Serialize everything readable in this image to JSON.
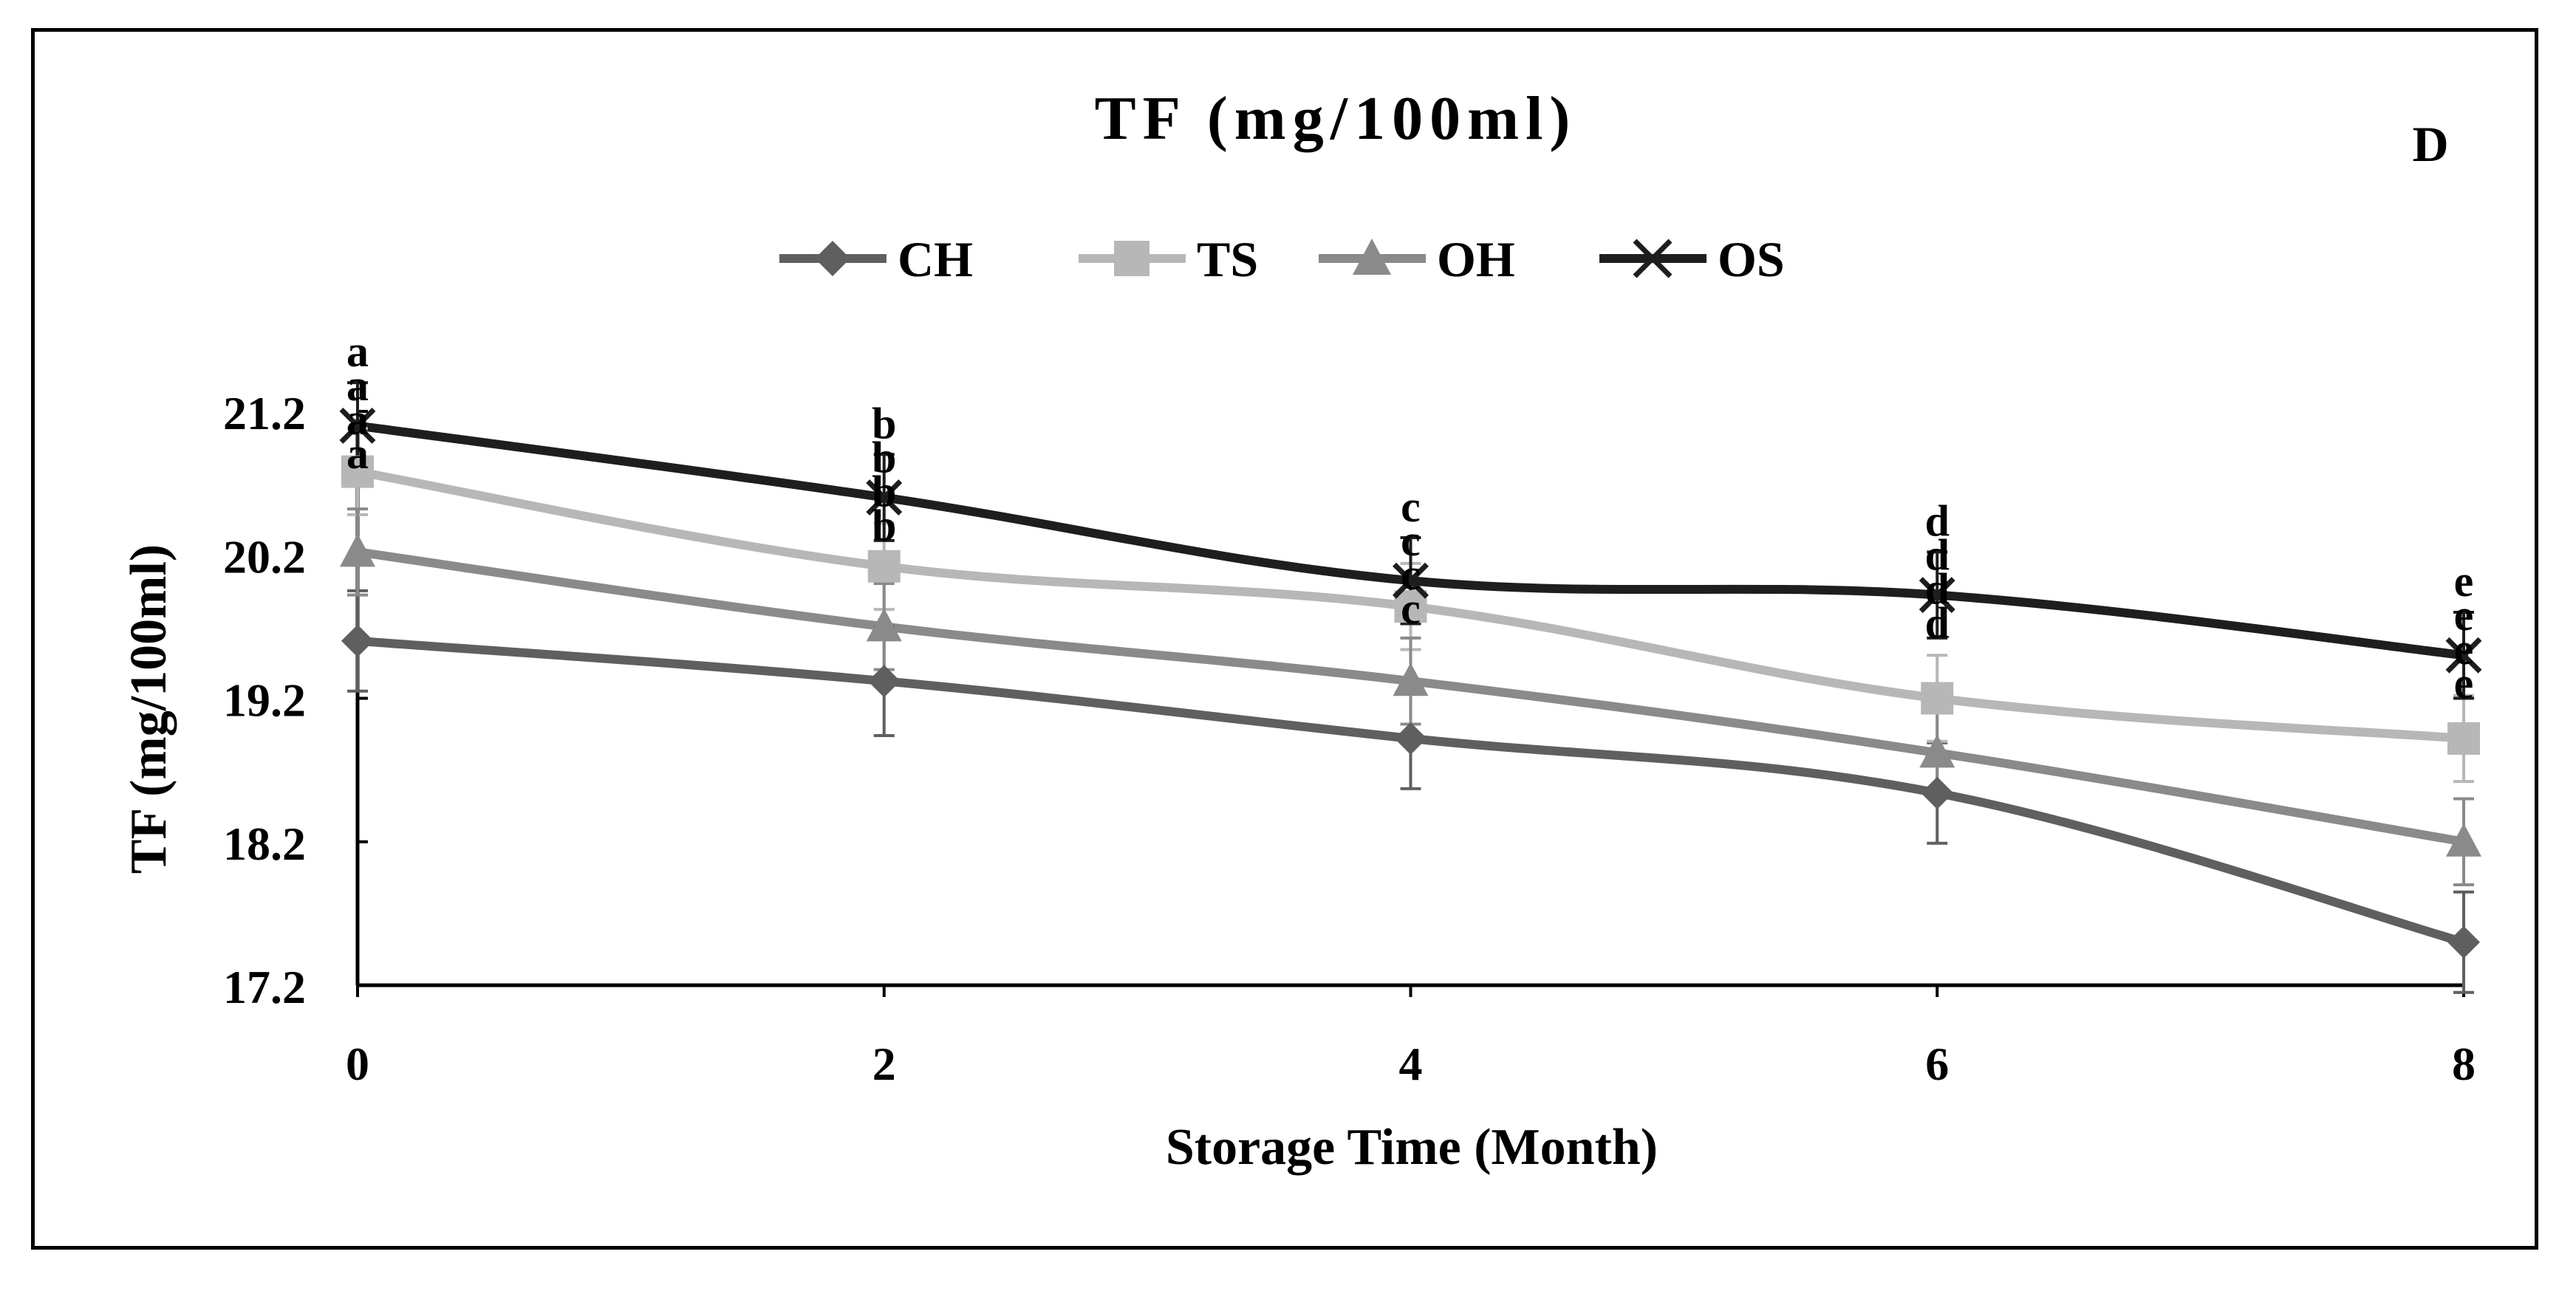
{
  "chart_data": {
    "type": "line",
    "title": "TF (mg/100ml)",
    "panel_label": "D",
    "xlabel": "Storage Time (Month)",
    "ylabel": "TF (mg/100ml)",
    "x": [
      0,
      2,
      4,
      6,
      8
    ],
    "x_tick_labels": [
      "0",
      "2",
      "4",
      "6",
      "8"
    ],
    "ylim": [
      17.2,
      21.2
    ],
    "y_ticks": [
      17.2,
      18.2,
      19.2,
      20.2,
      21.2
    ],
    "y_tick_labels": [
      "17.2",
      "18.2",
      "19.2",
      "20.2",
      "21.2"
    ],
    "grid": false,
    "legend_position": "top-center",
    "series": [
      {
        "name": "CH",
        "color": "#5f5f5f",
        "marker": "diamond",
        "values": [
          19.6,
          19.32,
          18.92,
          18.54,
          17.5
        ],
        "errors": [
          0.35,
          0.38,
          0.35,
          0.35,
          0.35
        ],
        "letters": [
          "a",
          "b",
          "c",
          "d",
          "e"
        ]
      },
      {
        "name": "TS",
        "color": "#b7b7b7",
        "marker": "square",
        "values": [
          20.78,
          20.12,
          19.84,
          19.2,
          18.92
        ],
        "errors": [
          0.3,
          0.3,
          0.3,
          0.3,
          0.3
        ],
        "letters": [
          "a",
          "b",
          "c",
          "d",
          "e"
        ]
      },
      {
        "name": "OH",
        "color": "#8a8a8a",
        "marker": "triangle",
        "values": [
          20.22,
          19.7,
          19.32,
          18.82,
          18.2
        ],
        "errors": [
          0.3,
          0.3,
          0.3,
          0.3,
          0.3
        ],
        "letters": [
          "a",
          "b",
          "c",
          "d",
          "e"
        ]
      },
      {
        "name": "OS",
        "color": "#1e1e1e",
        "marker": "x",
        "values": [
          21.1,
          20.6,
          20.02,
          19.92,
          19.5
        ],
        "errors": [
          0.3,
          0.3,
          0.3,
          0.3,
          0.3
        ],
        "letters": [
          "a",
          "b",
          "c",
          "d",
          "e"
        ]
      }
    ]
  }
}
